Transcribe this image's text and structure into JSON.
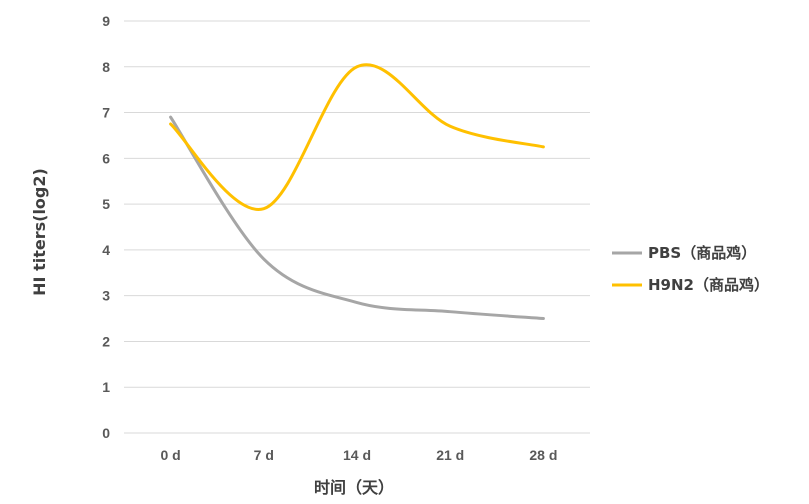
{
  "chart_data": {
    "type": "line",
    "title": "",
    "xlabel": "时间（天）",
    "ylabel": "HI titers(log2)",
    "categories": [
      "0 d",
      "7 d",
      "14 d",
      "21 d",
      "28 d"
    ],
    "ylim": [
      0,
      9
    ],
    "yticks": [
      "0",
      "1",
      "2",
      "3",
      "4",
      "5",
      "6",
      "7",
      "8",
      "9"
    ],
    "grid": true,
    "legend_position": "right",
    "smooth": true,
    "series": [
      {
        "name": "PBS（商品鸡）",
        "color": "#a6a6a6",
        "values": [
          6.9,
          3.8,
          2.85,
          2.65,
          2.5
        ]
      },
      {
        "name": "H9N2（商品鸡）",
        "color": "#ffc000",
        "values": [
          6.75,
          4.9,
          8.0,
          6.7,
          6.25
        ]
      }
    ]
  }
}
